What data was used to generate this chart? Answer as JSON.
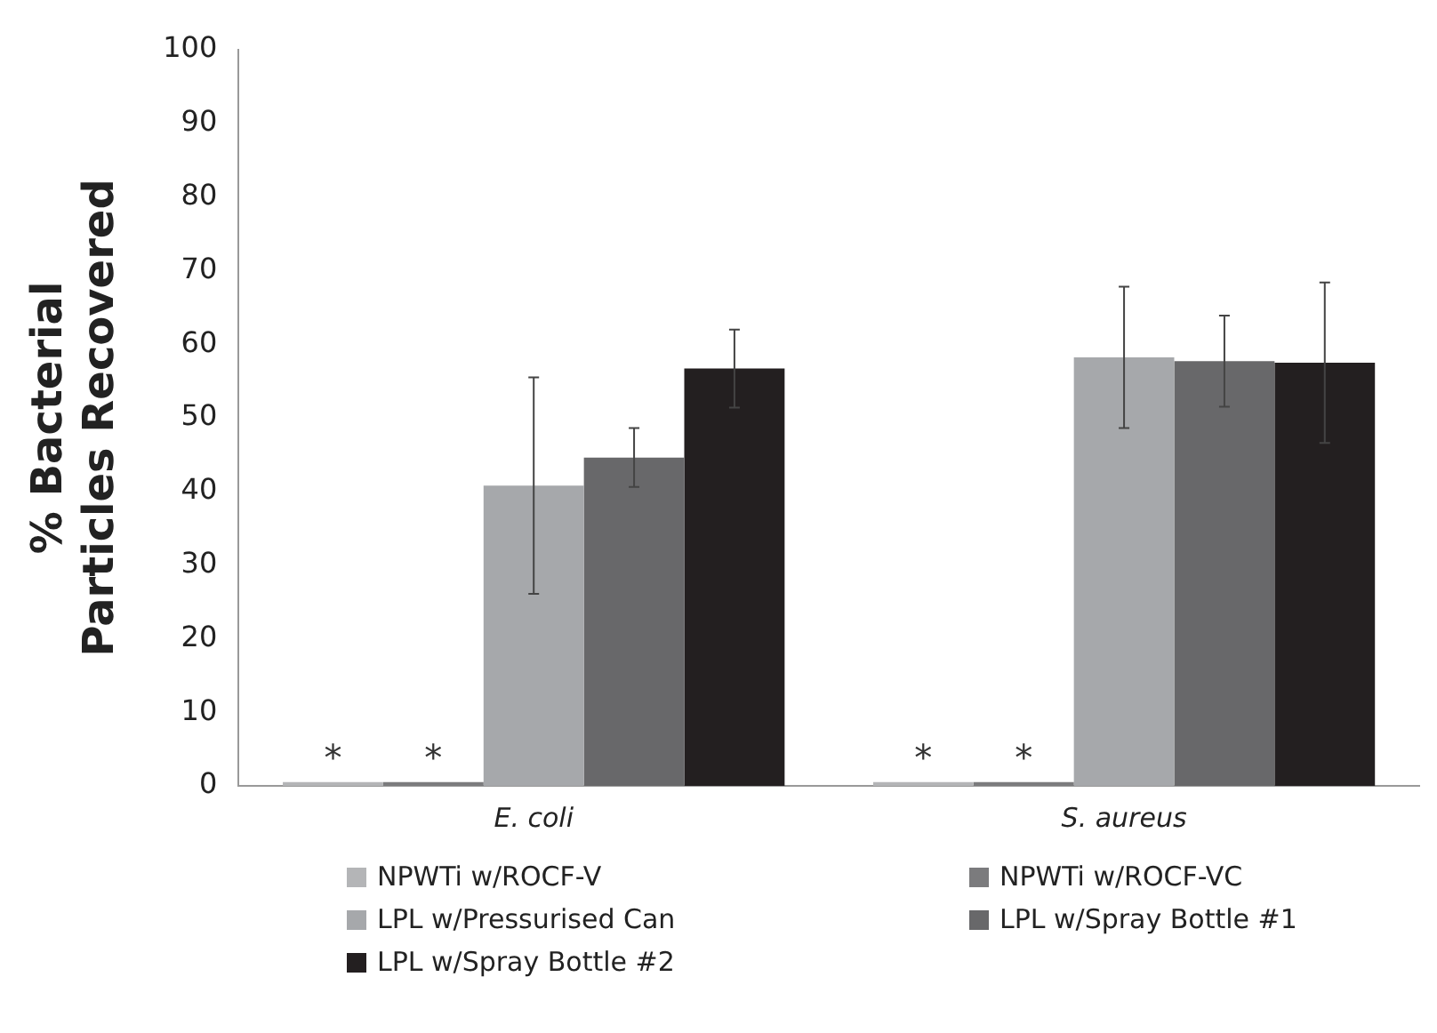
{
  "chart_data": {
    "type": "bar",
    "ylabel": "% Bacterial Particles Recovered",
    "categories": [
      "E. coli",
      "S. aureus"
    ],
    "series": [
      {
        "name": "NPWTi w/ROCF-V",
        "color": "#b4b5b7",
        "values": [
          0.5,
          0.5
        ],
        "value_labels": [
          "*",
          "*"
        ]
      },
      {
        "name": "NPWTi w/ROCF-VC",
        "color": "#7b7b7d",
        "values": [
          0.5,
          0.5
        ],
        "value_labels": [
          "*",
          "*"
        ]
      },
      {
        "name": "LPL w/Pressurised Can",
        "color": "#a6a8ab",
        "values": [
          40.8,
          58.2
        ],
        "errors": [
          14.7,
          9.6
        ]
      },
      {
        "name": "LPL w/Spray Bottle #1",
        "color": "#68686a",
        "values": [
          44.6,
          57.7
        ],
        "errors": [
          4,
          6.2
        ]
      },
      {
        "name": "LPL w/Spray Bottle #2",
        "color": "#231f20",
        "values": [
          56.7,
          57.5
        ],
        "errors": [
          5.3,
          10.9
        ]
      }
    ],
    "ylim": [
      0,
      100
    ],
    "yticks": [
      0,
      10,
      20,
      30,
      40,
      50,
      60,
      70,
      80,
      90,
      100
    ],
    "grid": false,
    "legend": "bottom"
  }
}
